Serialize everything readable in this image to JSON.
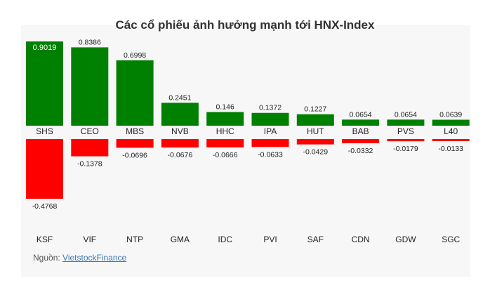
{
  "chart_data": {
    "type": "bar",
    "title": "Các cổ phiếu ảnh hưởng mạnh tới HNX-Index",
    "positive": {
      "color": "#008000",
      "categories": [
        "SHS",
        "CEO",
        "MBS",
        "NVB",
        "HHC",
        "IPA",
        "HUT",
        "BAB",
        "PVS",
        "L40"
      ],
      "values": [
        0.9019,
        0.8386,
        0.6998,
        0.2451,
        0.146,
        0.1372,
        0.1227,
        0.0654,
        0.0654,
        0.0639
      ],
      "value_labels": [
        "0.9019",
        "0.8386",
        "0.6998",
        "0.2451",
        "0.146",
        "0.1372",
        "0.1227",
        "0.0654",
        "0.0654",
        "0.0639"
      ]
    },
    "negative": {
      "color": "#ff0000",
      "categories": [
        "KSF",
        "VIF",
        "NTP",
        "GMA",
        "IDC",
        "PVI",
        "SAF",
        "CDN",
        "GDW",
        "SGC"
      ],
      "values": [
        -0.4768,
        -0.1378,
        -0.0696,
        -0.0676,
        -0.0666,
        -0.0633,
        -0.0429,
        -0.0332,
        -0.0179,
        -0.0133
      ],
      "value_labels": [
        "-0.4768",
        "-0.1378",
        "-0.0696",
        "-0.0676",
        "-0.0666",
        "-0.0633",
        "-0.0429",
        "-0.0332",
        "-0.0179",
        "-0.0133"
      ]
    }
  },
  "source": {
    "label": "Nguồn:",
    "link_text": "VietstockFinance"
  }
}
